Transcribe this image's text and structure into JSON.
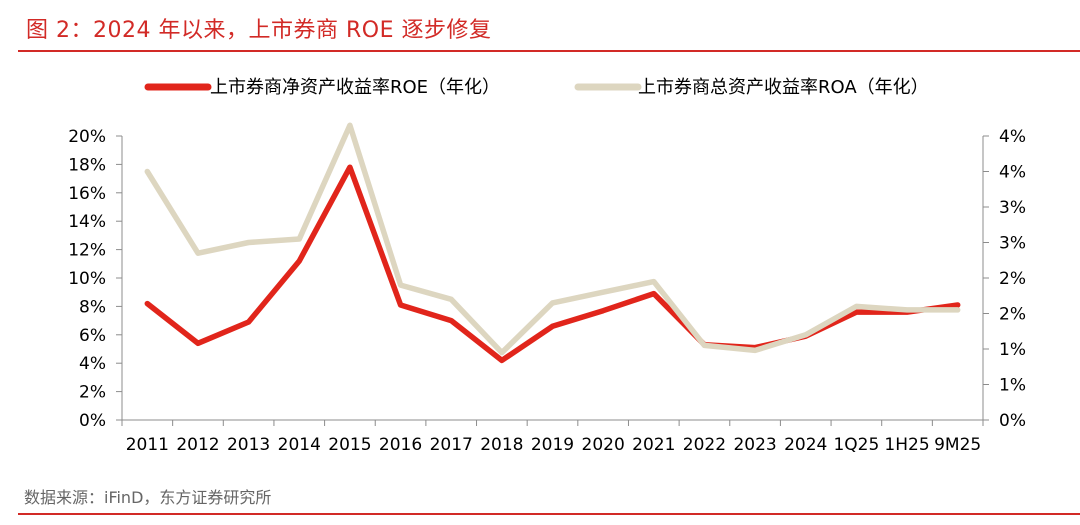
{
  "figure": {
    "title": "图 2：2024 年以来，上市券商 ROE 逐步修复",
    "source": "数据来源：iFinD，东方证券研究所"
  },
  "colors": {
    "accent": "#d22a26",
    "roe_line": "#e1251b",
    "roa_line": "#ddd6c0",
    "axis": "#8c8c8c"
  },
  "chart_data": {
    "type": "line",
    "title": "图 2：2024 年以来，上市券商 ROE 逐步修复",
    "categories": [
      "2011",
      "2012",
      "2013",
      "2014",
      "2015",
      "2016",
      "2017",
      "2018",
      "2019",
      "2020",
      "2021",
      "2022",
      "2023",
      "2024",
      "1Q25",
      "1H25",
      "9M25"
    ],
    "legend_position": "top",
    "grid": false,
    "series": [
      {
        "name": "上市券商净资产收益率ROE（年化）",
        "axis": "left",
        "color": "#e1251b",
        "values": [
          8.2,
          5.4,
          6.9,
          11.2,
          17.8,
          8.1,
          7.0,
          4.2,
          6.6,
          7.7,
          8.9,
          5.3,
          5.1,
          5.9,
          7.6,
          7.6,
          8.1
        ]
      },
      {
        "name": "上市券商总资产收益率ROA（年化）",
        "axis": "right",
        "color": "#ddd6c0",
        "values": [
          3.5,
          2.35,
          2.5,
          2.55,
          4.15,
          1.9,
          1.7,
          0.95,
          1.65,
          1.8,
          1.95,
          1.05,
          0.98,
          1.2,
          1.6,
          1.55,
          1.55
        ]
      }
    ],
    "y_left": {
      "ylim": [
        0,
        20
      ],
      "ticks": [
        0,
        2,
        4,
        6,
        8,
        10,
        12,
        14,
        16,
        18,
        20
      ],
      "tick_labels": [
        "0%",
        "2%",
        "4%",
        "6%",
        "8%",
        "10%",
        "12%",
        "14%",
        "16%",
        "18%",
        "20%"
      ]
    },
    "y_right": {
      "ylim": [
        0,
        4
      ],
      "ticks": [
        0,
        0.5,
        1,
        1.5,
        2,
        2.5,
        3,
        3.5,
        4
      ],
      "tick_labels": [
        "0%",
        "1%",
        "1%",
        "2%",
        "2%",
        "3%",
        "3%",
        "4%",
        "4%"
      ]
    },
    "xlabel": "",
    "ylabel": ""
  }
}
